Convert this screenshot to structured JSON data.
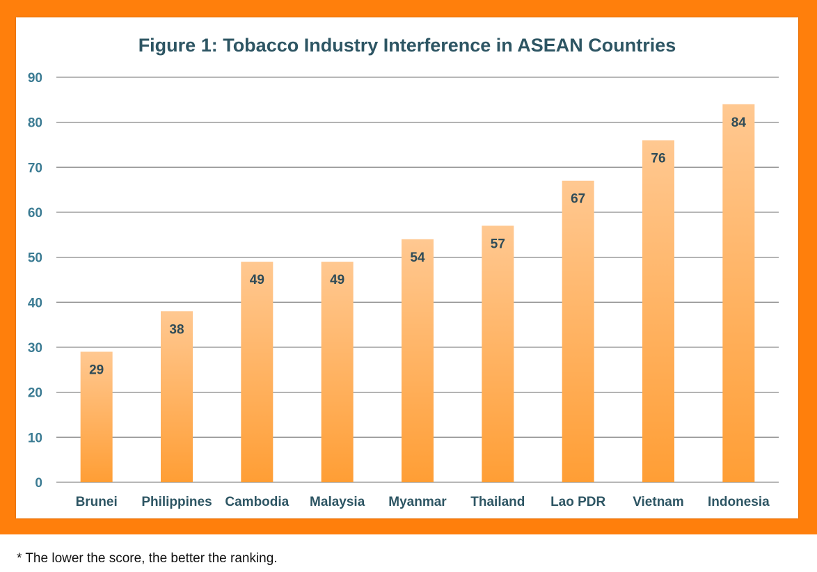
{
  "chart_data": {
    "type": "bar",
    "title": "Figure 1: Tobacco Industry Interference in ASEAN Countries",
    "categories": [
      "Brunei",
      "Philippines",
      "Cambodia",
      "Malaysia",
      "Myanmar",
      "Thailand",
      "Lao PDR",
      "Vietnam",
      "Indonesia"
    ],
    "values": [
      29,
      38,
      49,
      49,
      54,
      57,
      67,
      76,
      84
    ],
    "ylim": [
      0,
      90
    ],
    "yticks": [
      0,
      10,
      20,
      30,
      40,
      50,
      60,
      70,
      80,
      90
    ],
    "grid": true,
    "data_labels": true
  },
  "footnote": "* The lower the score, the better the ranking.",
  "colors": {
    "frame": "#ff7f0c",
    "bar_top": "#ffc891",
    "bar_bottom": "#ff9e35",
    "title": "#2d5563",
    "axis_text": "#3b7b93",
    "category_text": "#2d5563",
    "data_label": "#2f4b57",
    "grid": "#8c8c8c"
  }
}
